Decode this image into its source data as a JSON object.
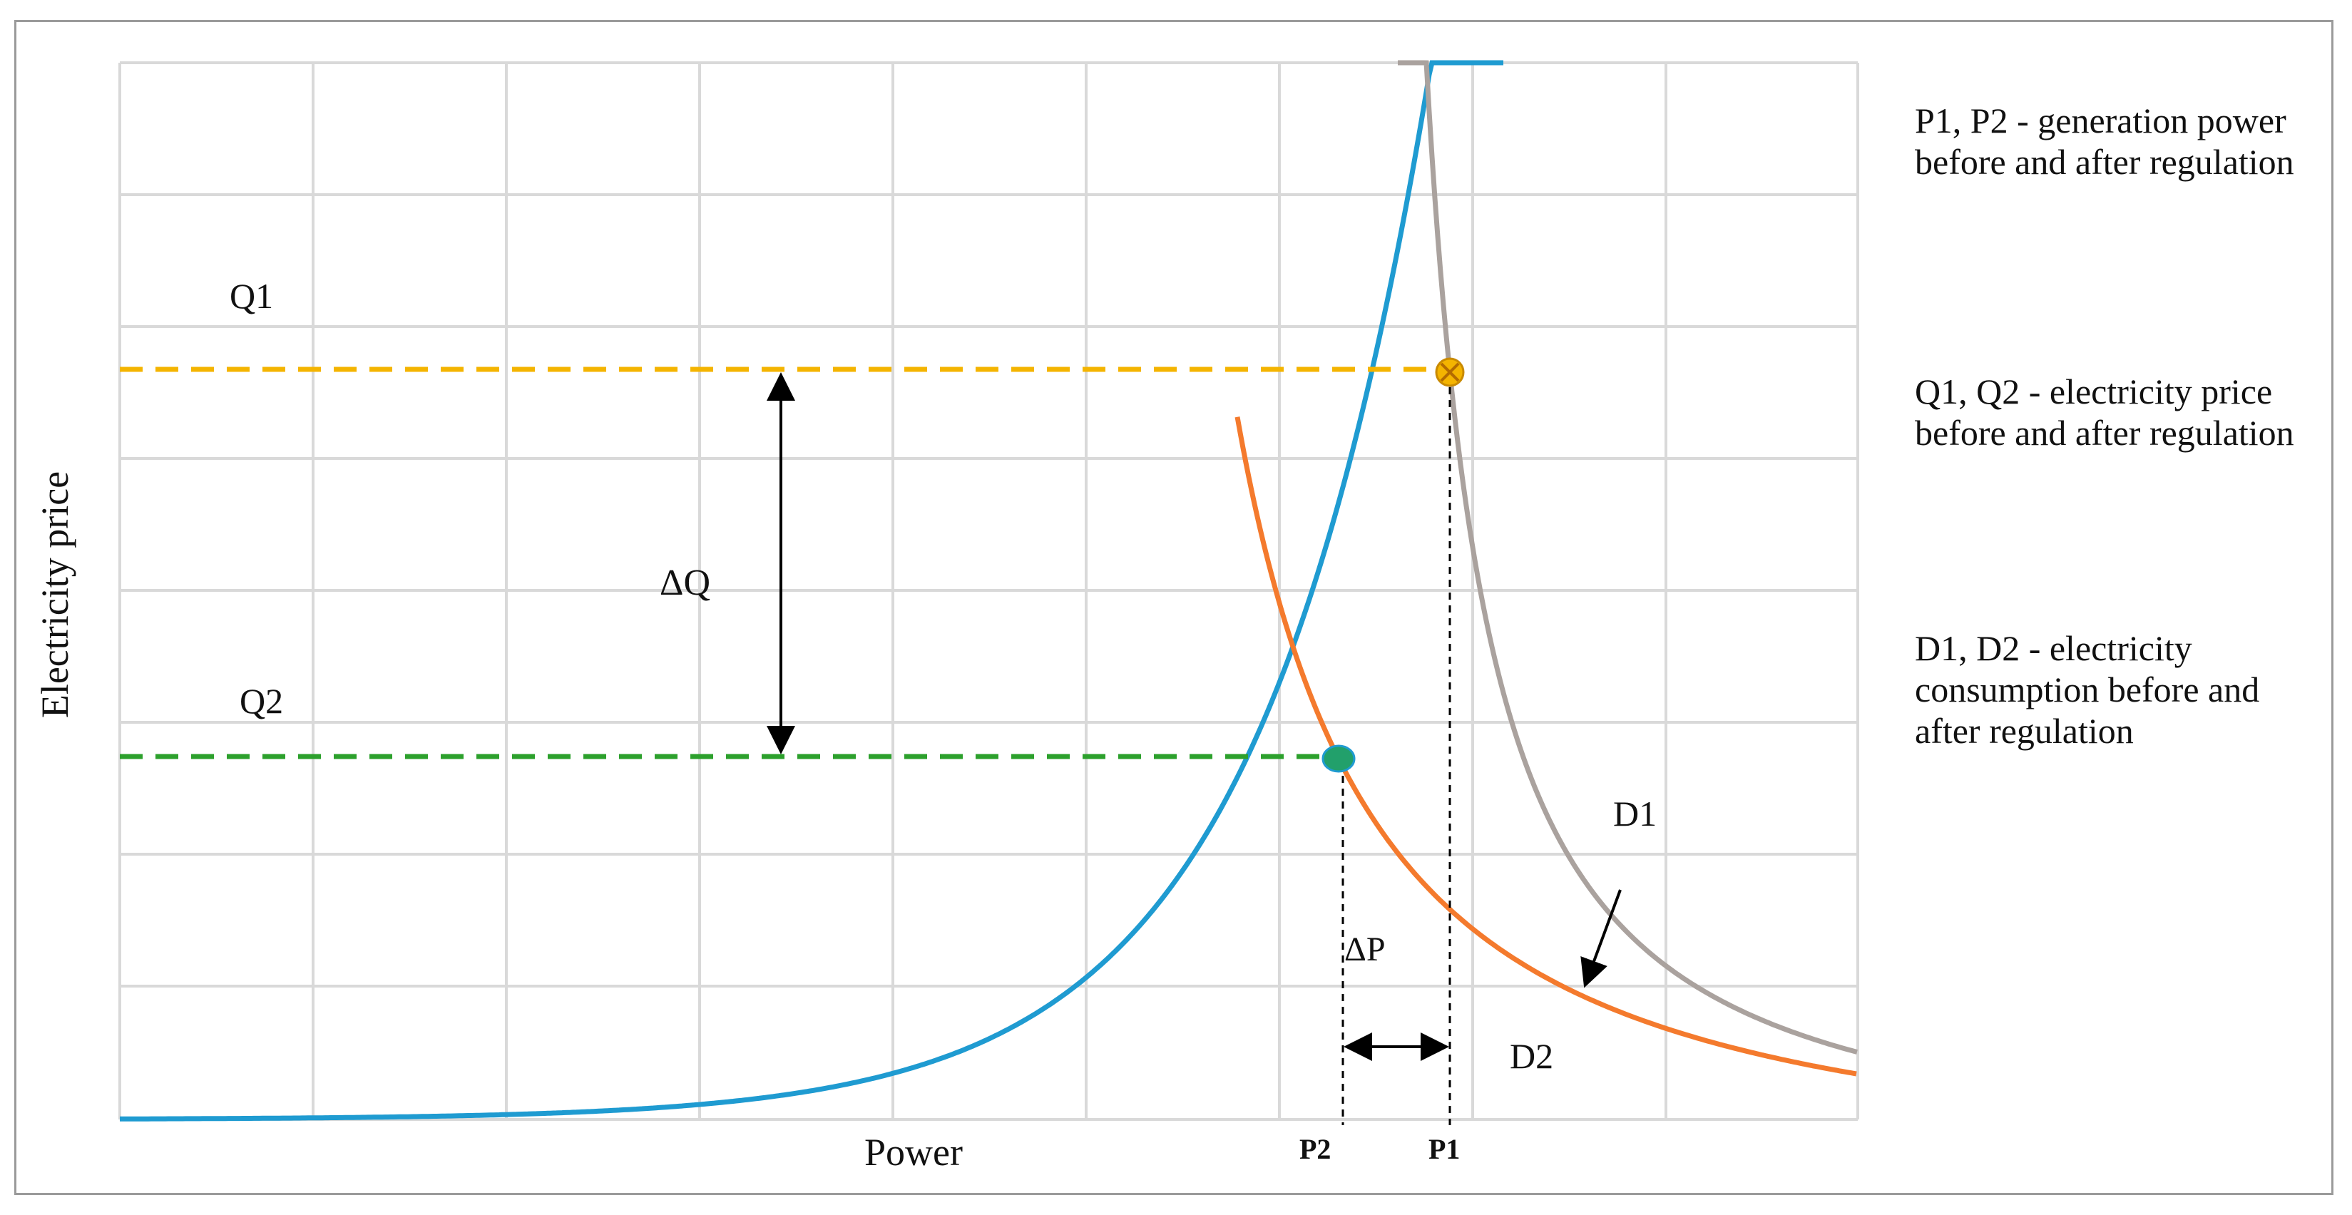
{
  "axes": {
    "x_label": "Power",
    "y_label": "Electricity price"
  },
  "labels": {
    "q1": "Q1",
    "q2": "Q2",
    "delta_q": "ΔQ",
    "delta_p": "ΔP",
    "p1": "P1",
    "p2": "P2",
    "d1": "D1",
    "d2": "D2"
  },
  "legend": [
    "P1, P2 - generation power before and after regulation",
    "Q1, Q2 - electricity price before and after regulation",
    "D1, D2 - electricity consumption before and after regulation"
  ],
  "colors": {
    "supply": "#1f9bd1",
    "d1": "#aaa29e",
    "d2": "#f47a2d",
    "q1_line": "#f4b400",
    "q2_line": "#2ca02c",
    "grid": "#d9d9d9",
    "frame": "#9a9a9a"
  }
}
